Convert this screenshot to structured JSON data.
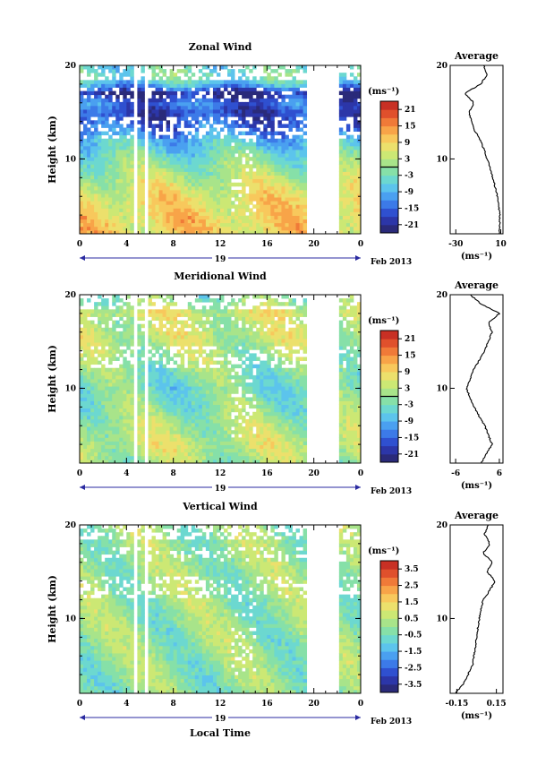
{
  "figure": {
    "date_label": "Feb 2013",
    "xlabel": "Local Time",
    "day_label": "19"
  },
  "chart_data": [
    {
      "type": "heatmap",
      "title": "Zonal Wind",
      "ylabel": "Height (km)",
      "xlabel": "Local Time",
      "x_ticks": [
        "0",
        "4",
        "8",
        "12",
        "16",
        "20",
        "0"
      ],
      "xlim": [
        0,
        24
      ],
      "y_ticks": [
        "20",
        "10"
      ],
      "ylim": [
        2,
        20
      ],
      "unit_label": "(ms⁻¹)",
      "colorbar": {
        "ticks": [
          "21",
          "15",
          "9",
          "3",
          "-3",
          "-9",
          "-15",
          "-21"
        ],
        "range": [
          -24,
          24
        ],
        "zero_line": true
      },
      "data_gaps_hours": [
        [
          4.5,
          4.9
        ],
        [
          5.5,
          5.8
        ],
        [
          19.4,
          22.3
        ]
      ],
      "profile_levels_km": [
        2,
        4,
        6,
        8,
        10,
        12,
        13,
        14,
        15,
        16,
        17,
        18,
        19,
        20
      ],
      "profile_values": [
        9,
        9,
        7,
        3,
        -2,
        -8,
        -13,
        -16,
        -18,
        -14,
        -22,
        -8,
        -2,
        -5
      ],
      "profile": {
        "title": "Average",
        "x_ticks": [
          "-30",
          "10"
        ],
        "xlim": [
          -35,
          12
        ],
        "y_ticks": [
          "20",
          "10"
        ],
        "unit_label": "(ms⁻¹)"
      }
    },
    {
      "type": "heatmap",
      "title": "Meridional Wind",
      "ylabel": "Height (km)",
      "xlabel": "Local Time",
      "x_ticks": [
        "0",
        "4",
        "8",
        "12",
        "16",
        "20",
        "0"
      ],
      "xlim": [
        0,
        24
      ],
      "y_ticks": [
        "20",
        "10"
      ],
      "ylim": [
        2,
        20
      ],
      "unit_label": "(ms⁻¹)",
      "colorbar": {
        "ticks": [
          "21",
          "15",
          "9",
          "3",
          "-3",
          "-9",
          "-15",
          "-21"
        ],
        "range": [
          -24,
          24
        ],
        "zero_line": true
      },
      "data_gaps_hours": [
        [
          4.5,
          4.9
        ],
        [
          5.5,
          5.8
        ],
        [
          19.4,
          22.3
        ]
      ],
      "profile_levels_km": [
        2,
        4,
        6,
        8,
        10,
        12,
        14,
        16,
        17,
        18,
        19,
        20
      ],
      "profile_values": [
        1,
        4,
        2,
        -1,
        -3,
        -1,
        2,
        4,
        3,
        6,
        1,
        -2
      ],
      "profile": {
        "title": "Average",
        "x_ticks": [
          "-6",
          "6"
        ],
        "xlim": [
          -7.5,
          7
        ],
        "y_ticks": [
          "20",
          "10"
        ],
        "unit_label": "(ms⁻¹)"
      }
    },
    {
      "type": "heatmap",
      "title": "Vertical Wind",
      "ylabel": "Height (km)",
      "xlabel": "Local Time",
      "x_ticks": [
        "0",
        "4",
        "8",
        "12",
        "16",
        "20",
        "0"
      ],
      "xlim": [
        0,
        24
      ],
      "y_ticks": [
        "20",
        "10"
      ],
      "ylim": [
        2,
        20
      ],
      "unit_label": "(ms⁻¹)",
      "colorbar": {
        "ticks": [
          "3.5",
          "2.5",
          "1.5",
          "0.5",
          "-0.5",
          "-1.5",
          "-2.5",
          "-3.5"
        ],
        "range": [
          -4,
          4
        ],
        "zero_line": false
      },
      "data_gaps_hours": [
        [
          4.5,
          4.9
        ],
        [
          5.5,
          5.8
        ],
        [
          19.4,
          22.3
        ]
      ],
      "profile_levels_km": [
        2,
        3,
        5,
        8,
        10,
        12,
        13,
        14,
        15,
        16,
        17,
        18,
        19,
        20
      ],
      "profile_values": [
        -0.16,
        -0.1,
        -0.03,
        0.0,
        0.02,
        0.05,
        0.1,
        0.14,
        0.08,
        0.12,
        0.05,
        0.1,
        0.06,
        0.09
      ],
      "profile": {
        "title": "Average",
        "x_ticks": [
          "-0.15",
          "0.15"
        ],
        "xlim": [
          -0.2,
          0.2
        ],
        "y_ticks": [
          "20",
          "10"
        ],
        "unit_label": "(ms⁻¹)"
      }
    }
  ]
}
